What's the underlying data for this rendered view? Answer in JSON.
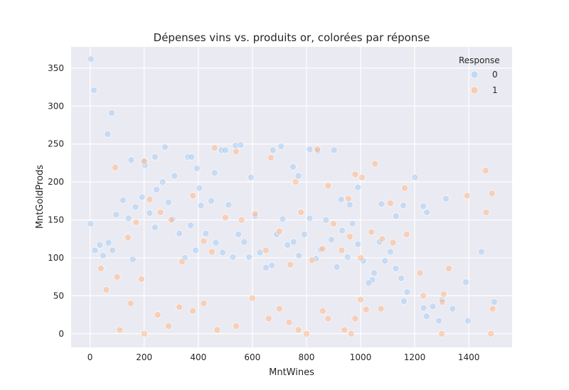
{
  "chart_data": {
    "type": "scatter",
    "title": "Dépenses vins vs. produits or, colorées par réponse",
    "xlabel": "MntWines",
    "ylabel": "MntGoldProds",
    "xlim": [
      -70,
      1560
    ],
    "ylim": [
      -18,
      378
    ],
    "xticks": [
      0,
      200,
      400,
      600,
      800,
      1000,
      1200,
      1400
    ],
    "yticks": [
      0,
      50,
      100,
      150,
      200,
      250,
      300,
      350
    ],
    "grid": true,
    "legend": {
      "title": "Response",
      "placement": "top-right",
      "entries": [
        "0",
        "1"
      ]
    },
    "colors": {
      "0": "#a1c9f4",
      "1": "#ffb482",
      "background": "#eaeaf2"
    },
    "series": [
      {
        "name": "0",
        "points": [
          [
            3,
            362
          ],
          [
            14,
            321
          ],
          [
            80,
            291
          ],
          [
            65,
            263
          ],
          [
            152,
            229
          ],
          [
            200,
            228
          ],
          [
            203,
            222
          ],
          [
            240,
            233
          ],
          [
            277,
            246
          ],
          [
            312,
            208
          ],
          [
            362,
            233
          ],
          [
            375,
            233
          ],
          [
            395,
            218
          ],
          [
            404,
            192
          ],
          [
            460,
            212
          ],
          [
            486,
            242
          ],
          [
            500,
            242
          ],
          [
            538,
            248
          ],
          [
            557,
            249
          ],
          [
            595,
            206
          ],
          [
            676,
            242
          ],
          [
            706,
            247
          ],
          [
            750,
            220
          ],
          [
            770,
            208
          ],
          [
            812,
            243
          ],
          [
            842,
            241
          ],
          [
            902,
            242
          ],
          [
            928,
            177
          ],
          [
            960,
            170
          ],
          [
            990,
            193
          ],
          [
            1077,
            171
          ],
          [
            1131,
            155
          ],
          [
            1158,
            169
          ],
          [
            1201,
            206
          ],
          [
            1232,
            168
          ],
          [
            1245,
            160
          ],
          [
            1315,
            178
          ],
          [
            1447,
            108
          ],
          [
            1389,
            68
          ],
          [
            1397,
            17
          ],
          [
            1289,
            17
          ],
          [
            1244,
            23
          ],
          [
            1301,
            45
          ],
          [
            1340,
            33
          ],
          [
            1267,
            36
          ],
          [
            1494,
            42
          ],
          [
            1233,
            34
          ],
          [
            1172,
            55
          ],
          [
            1043,
            71
          ],
          [
            1160,
            43
          ],
          [
            2,
            145
          ],
          [
            18,
            110
          ],
          [
            36,
            117
          ],
          [
            48,
            103
          ],
          [
            68,
            120
          ],
          [
            83,
            110
          ],
          [
            97,
            157
          ],
          [
            122,
            176
          ],
          [
            142,
            152
          ],
          [
            158,
            98
          ],
          [
            168,
            167
          ],
          [
            192,
            180
          ],
          [
            220,
            159
          ],
          [
            240,
            140
          ],
          [
            246,
            190
          ],
          [
            268,
            200
          ],
          [
            290,
            173
          ],
          [
            305,
            151
          ],
          [
            330,
            132
          ],
          [
            350,
            100
          ],
          [
            372,
            143
          ],
          [
            390,
            110
          ],
          [
            410,
            169
          ],
          [
            428,
            132
          ],
          [
            448,
            175
          ],
          [
            465,
            120
          ],
          [
            490,
            107
          ],
          [
            512,
            170
          ],
          [
            528,
            101
          ],
          [
            548,
            131
          ],
          [
            570,
            121
          ],
          [
            588,
            101
          ],
          [
            610,
            155
          ],
          [
            628,
            107
          ],
          [
            650,
            87
          ],
          [
            672,
            90
          ],
          [
            690,
            131
          ],
          [
            712,
            151
          ],
          [
            730,
            117
          ],
          [
            752,
            121
          ],
          [
            772,
            103
          ],
          [
            792,
            131
          ],
          [
            812,
            152
          ],
          [
            835,
            99
          ],
          [
            852,
            111
          ],
          [
            872,
            150
          ],
          [
            892,
            124
          ],
          [
            912,
            88
          ],
          [
            932,
            136
          ],
          [
            952,
            101
          ],
          [
            970,
            145
          ],
          [
            990,
            118
          ],
          [
            1010,
            96
          ],
          [
            1030,
            67
          ],
          [
            1050,
            80
          ],
          [
            1070,
            121
          ],
          [
            1090,
            96
          ],
          [
            1110,
            108
          ],
          [
            1130,
            86
          ],
          [
            1150,
            73
          ]
        ]
      },
      {
        "name": "1",
        "points": [
          [
            93,
            219
          ],
          [
            200,
            227
          ],
          [
            460,
            245
          ],
          [
            540,
            240
          ],
          [
            668,
            232
          ],
          [
            760,
            200
          ],
          [
            840,
            243
          ],
          [
            880,
            195
          ],
          [
            955,
            178
          ],
          [
            980,
            210
          ],
          [
            1005,
            206
          ],
          [
            1053,
            224
          ],
          [
            1110,
            172
          ],
          [
            1163,
            192
          ],
          [
            1394,
            182
          ],
          [
            1462,
            215
          ],
          [
            1486,
            185
          ],
          [
            1464,
            160
          ],
          [
            1482,
            0
          ],
          [
            1488,
            33
          ],
          [
            1307,
            52
          ],
          [
            1302,
            42
          ],
          [
            1326,
            86
          ],
          [
            1220,
            80
          ],
          [
            1300,
            0
          ],
          [
            1232,
            50
          ],
          [
            1000,
            45
          ],
          [
            1020,
            32
          ],
          [
            1075,
            33
          ],
          [
            980,
            20
          ],
          [
            965,
            0
          ],
          [
            940,
            5
          ],
          [
            860,
            30
          ],
          [
            880,
            20
          ],
          [
            800,
            0
          ],
          [
            770,
            5
          ],
          [
            736,
            15
          ],
          [
            700,
            33
          ],
          [
            660,
            20
          ],
          [
            600,
            47
          ],
          [
            540,
            10
          ],
          [
            470,
            5
          ],
          [
            420,
            40
          ],
          [
            380,
            30
          ],
          [
            330,
            35
          ],
          [
            290,
            10
          ],
          [
            250,
            25
          ],
          [
            200,
            0
          ],
          [
            150,
            40
          ],
          [
            110,
            5
          ],
          [
            40,
            86
          ],
          [
            60,
            58
          ],
          [
            100,
            75
          ],
          [
            140,
            127
          ],
          [
            170,
            147
          ],
          [
            190,
            72
          ],
          [
            220,
            177
          ],
          [
            260,
            160
          ],
          [
            300,
            150
          ],
          [
            340,
            95
          ],
          [
            380,
            182
          ],
          [
            420,
            122
          ],
          [
            450,
            108
          ],
          [
            500,
            153
          ],
          [
            560,
            150
          ],
          [
            610,
            158
          ],
          [
            650,
            110
          ],
          [
            700,
            135
          ],
          [
            740,
            91
          ],
          [
            780,
            160
          ],
          [
            820,
            97
          ],
          [
            860,
            112
          ],
          [
            900,
            145
          ],
          [
            930,
            110
          ],
          [
            960,
            128
          ],
          [
            1000,
            100
          ],
          [
            1040,
            134
          ],
          [
            1080,
            125
          ],
          [
            1120,
            120
          ],
          [
            1170,
            131
          ]
        ]
      }
    ]
  }
}
